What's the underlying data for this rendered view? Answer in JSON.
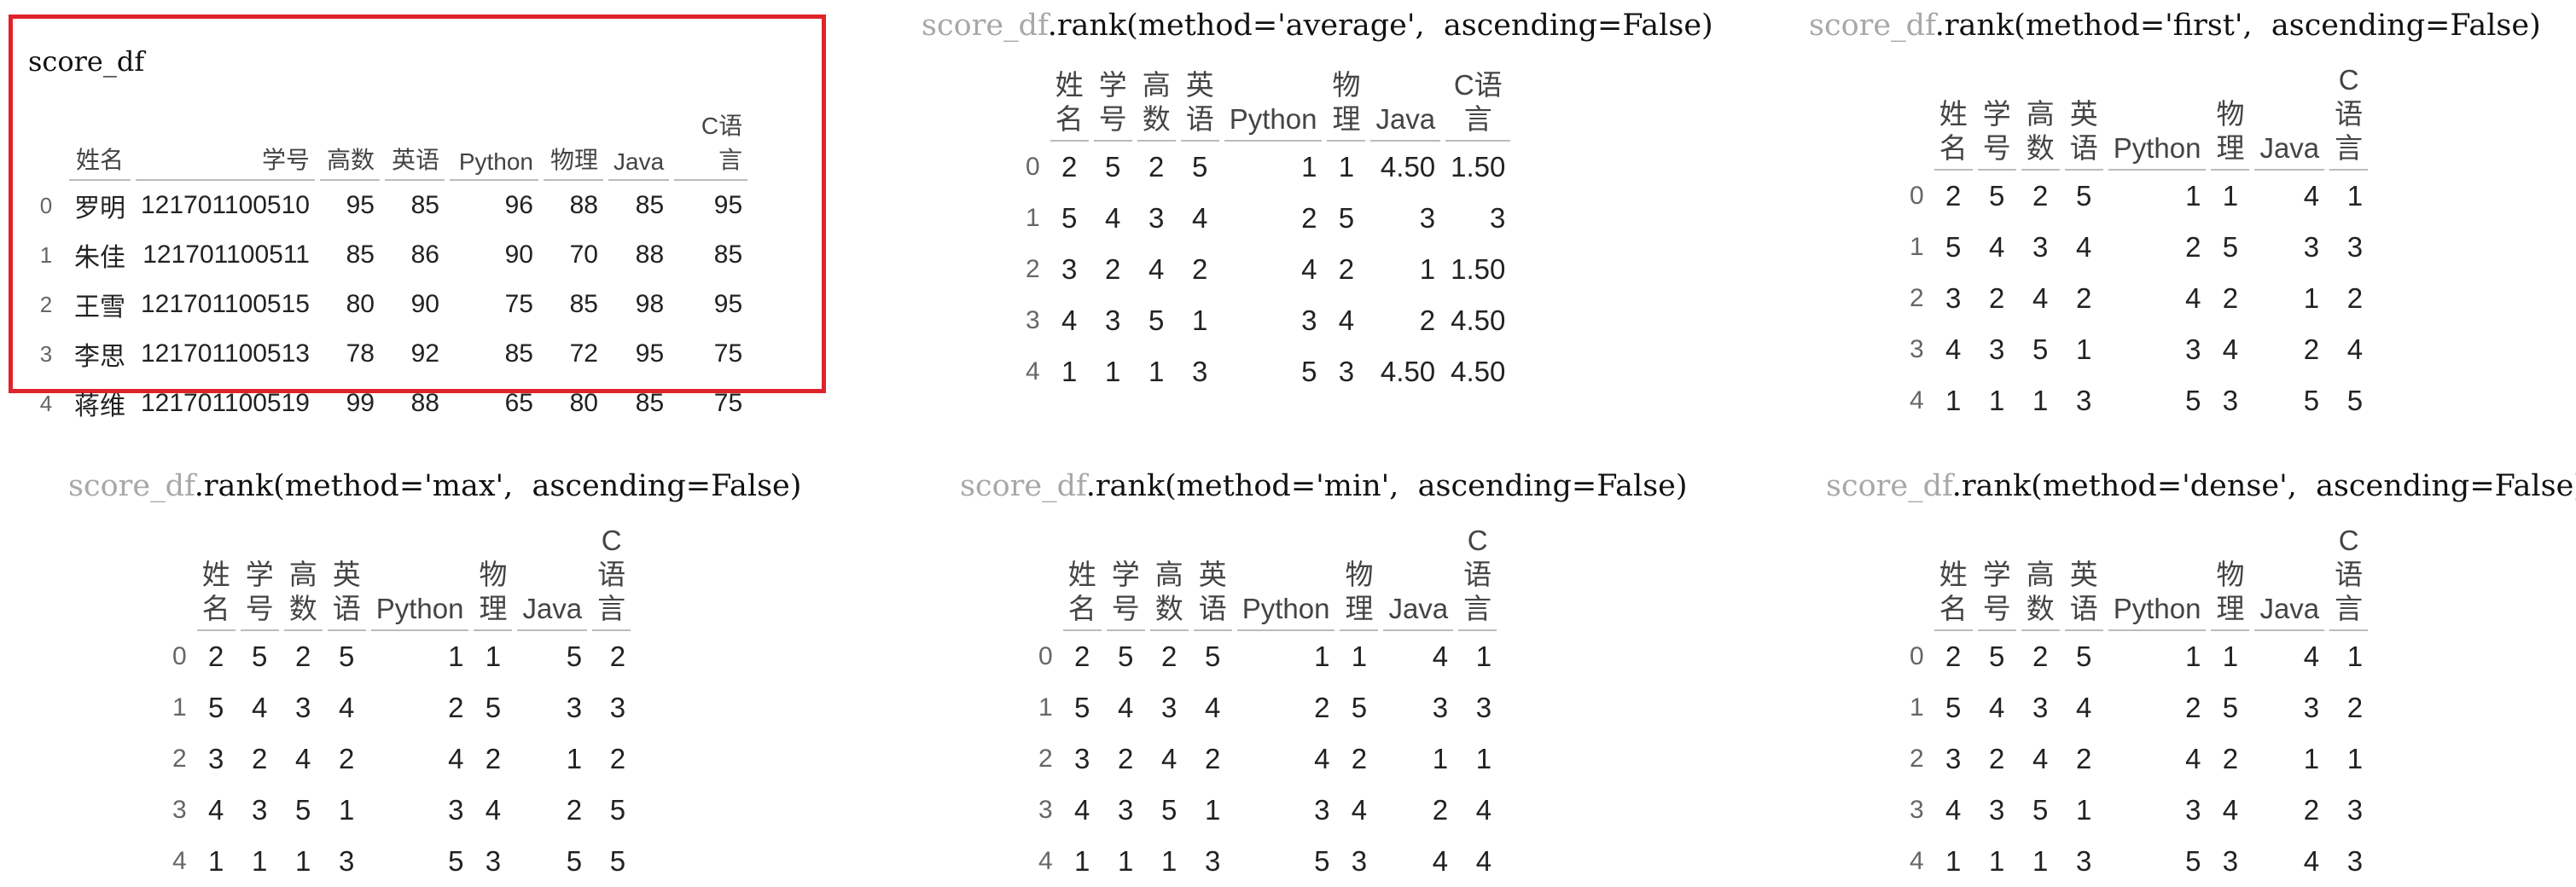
{
  "source": {
    "label": "score_df",
    "columns": [
      "姓名",
      "学号",
      "高数",
      "英语",
      "Python",
      "物理",
      "Java",
      "C语言"
    ],
    "rows": [
      {
        "idx": "0",
        "cells": [
          "罗明",
          "121701100510",
          "95",
          "85",
          "96",
          "88",
          "85",
          "95"
        ]
      },
      {
        "idx": "1",
        "cells": [
          "朱佳",
          "121701100511",
          "85",
          "86",
          "90",
          "70",
          "88",
          "85"
        ]
      },
      {
        "idx": "2",
        "cells": [
          "王雪",
          "121701100515",
          "80",
          "90",
          "75",
          "85",
          "98",
          "95"
        ]
      },
      {
        "idx": "3",
        "cells": [
          "李思",
          "121701100513",
          "78",
          "92",
          "85",
          "72",
          "95",
          "75"
        ]
      },
      {
        "idx": "4",
        "cells": [
          "蒋维",
          "121701100519",
          "99",
          "88",
          "65",
          "80",
          "85",
          "75"
        ]
      }
    ]
  },
  "rank_columns": [
    {
      "top": "姓",
      "bottom": "名"
    },
    {
      "top": "学",
      "bottom": "号"
    },
    {
      "top": "高",
      "bottom": "数"
    },
    {
      "top": "英",
      "bottom": "语"
    },
    {
      "top": "Python",
      "bottom": ""
    },
    {
      "top": "物",
      "bottom": "理"
    },
    {
      "top": "Java",
      "bottom": ""
    },
    {
      "top": "C语",
      "bottom": "言"
    }
  ],
  "rank_tables": [
    {
      "id": "average",
      "code_prefix": "score_df",
      "code_suffix": ".rank(method='average',  ascending=False)",
      "rows": [
        {
          "idx": "0",
          "cells": [
            "2",
            "5",
            "2",
            "5",
            "1",
            "1",
            "4.50",
            "1.50"
          ]
        },
        {
          "idx": "1",
          "cells": [
            "5",
            "4",
            "3",
            "4",
            "2",
            "5",
            "3",
            "3"
          ]
        },
        {
          "idx": "2",
          "cells": [
            "3",
            "2",
            "4",
            "2",
            "4",
            "2",
            "1",
            "1.50"
          ]
        },
        {
          "idx": "3",
          "cells": [
            "4",
            "3",
            "5",
            "1",
            "3",
            "4",
            "2",
            "4.50"
          ]
        },
        {
          "idx": "4",
          "cells": [
            "1",
            "1",
            "1",
            "3",
            "5",
            "3",
            "4.50",
            "4.50"
          ]
        }
      ]
    },
    {
      "id": "first",
      "code_prefix": "score_df",
      "code_suffix": ".rank(method='first',  ascending=False)",
      "rows": [
        {
          "idx": "0",
          "cells": [
            "2",
            "5",
            "2",
            "5",
            "1",
            "1",
            "4",
            "1"
          ]
        },
        {
          "idx": "1",
          "cells": [
            "5",
            "4",
            "3",
            "4",
            "2",
            "5",
            "3",
            "3"
          ]
        },
        {
          "idx": "2",
          "cells": [
            "3",
            "2",
            "4",
            "2",
            "4",
            "2",
            "1",
            "2"
          ]
        },
        {
          "idx": "3",
          "cells": [
            "4",
            "3",
            "5",
            "1",
            "3",
            "4",
            "2",
            "4"
          ]
        },
        {
          "idx": "4",
          "cells": [
            "1",
            "1",
            "1",
            "3",
            "5",
            "3",
            "5",
            "5"
          ]
        }
      ]
    },
    {
      "id": "max",
      "code_prefix": "score_df",
      "code_suffix": ".rank(method='max',  ascending=False)",
      "rows": [
        {
          "idx": "0",
          "cells": [
            "2",
            "5",
            "2",
            "5",
            "1",
            "1",
            "5",
            "2"
          ]
        },
        {
          "idx": "1",
          "cells": [
            "5",
            "4",
            "3",
            "4",
            "2",
            "5",
            "3",
            "3"
          ]
        },
        {
          "idx": "2",
          "cells": [
            "3",
            "2",
            "4",
            "2",
            "4",
            "2",
            "1",
            "2"
          ]
        },
        {
          "idx": "3",
          "cells": [
            "4",
            "3",
            "5",
            "1",
            "3",
            "4",
            "2",
            "5"
          ]
        },
        {
          "idx": "4",
          "cells": [
            "1",
            "1",
            "1",
            "3",
            "5",
            "3",
            "5",
            "5"
          ]
        }
      ]
    },
    {
      "id": "min",
      "code_prefix": "score_df",
      "code_suffix": ".rank(method='min',  ascending=False)",
      "rows": [
        {
          "idx": "0",
          "cells": [
            "2",
            "5",
            "2",
            "5",
            "1",
            "1",
            "4",
            "1"
          ]
        },
        {
          "idx": "1",
          "cells": [
            "5",
            "4",
            "3",
            "4",
            "2",
            "5",
            "3",
            "3"
          ]
        },
        {
          "idx": "2",
          "cells": [
            "3",
            "2",
            "4",
            "2",
            "4",
            "2",
            "1",
            "1"
          ]
        },
        {
          "idx": "3",
          "cells": [
            "4",
            "3",
            "5",
            "1",
            "3",
            "4",
            "2",
            "4"
          ]
        },
        {
          "idx": "4",
          "cells": [
            "1",
            "1",
            "1",
            "3",
            "5",
            "3",
            "4",
            "4"
          ]
        }
      ]
    },
    {
      "id": "dense",
      "code_prefix": "score_df",
      "code_suffix": ".rank(method='dense',  ascending=False)",
      "rows": [
        {
          "idx": "0",
          "cells": [
            "2",
            "5",
            "2",
            "5",
            "1",
            "1",
            "4",
            "1"
          ]
        },
        {
          "idx": "1",
          "cells": [
            "5",
            "4",
            "3",
            "4",
            "2",
            "5",
            "3",
            "2"
          ]
        },
        {
          "idx": "2",
          "cells": [
            "3",
            "2",
            "4",
            "2",
            "4",
            "2",
            "1",
            "1"
          ]
        },
        {
          "idx": "3",
          "cells": [
            "4",
            "3",
            "5",
            "1",
            "3",
            "4",
            "2",
            "3"
          ]
        },
        {
          "idx": "4",
          "cells": [
            "1",
            "1",
            "1",
            "3",
            "5",
            "3",
            "4",
            "3"
          ]
        }
      ]
    }
  ],
  "colors": {
    "highlight_border": "#e0232a",
    "code_dim": "#a8a8a8"
  }
}
